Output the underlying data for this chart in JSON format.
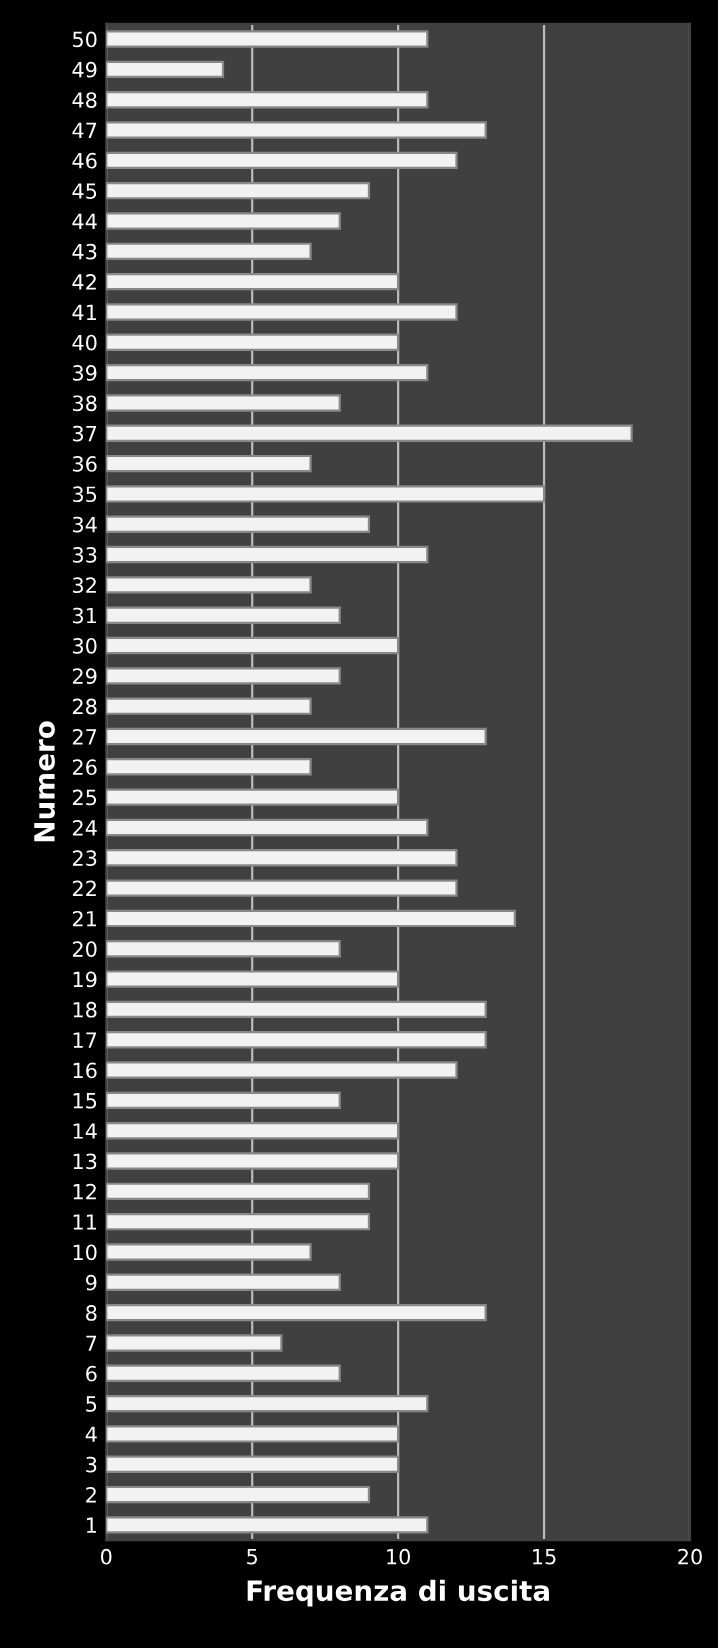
{
  "chart_data": {
    "type": "bar",
    "orientation": "horizontal",
    "xlabel": "Frequenza di uscita",
    "ylabel": "Numero",
    "categories": [
      "50",
      "49",
      "48",
      "47",
      "46",
      "45",
      "44",
      "43",
      "42",
      "41",
      "40",
      "39",
      "38",
      "37",
      "36",
      "35",
      "34",
      "33",
      "32",
      "31",
      "30",
      "29",
      "28",
      "27",
      "26",
      "25",
      "24",
      "23",
      "22",
      "21",
      "20",
      "19",
      "18",
      "17",
      "16",
      "15",
      "14",
      "13",
      "12",
      "11",
      "10",
      "9",
      "8",
      "7",
      "6",
      "5",
      "4",
      "3",
      "2",
      "1"
    ],
    "values": [
      11,
      4,
      11,
      13,
      12,
      9,
      8,
      7,
      10,
      12,
      10,
      11,
      8,
      18,
      7,
      15,
      9,
      11,
      7,
      8,
      10,
      8,
      7,
      13,
      7,
      10,
      11,
      12,
      12,
      14,
      8,
      10,
      13,
      13,
      12,
      8,
      10,
      10,
      9,
      9,
      7,
      8,
      13,
      6,
      8,
      11,
      10,
      10,
      9,
      11
    ],
    "color": "#f2f2f2",
    "xlim": [
      0,
      20
    ],
    "xticks": [
      0,
      5,
      10,
      15,
      20
    ],
    "grid": "x"
  }
}
